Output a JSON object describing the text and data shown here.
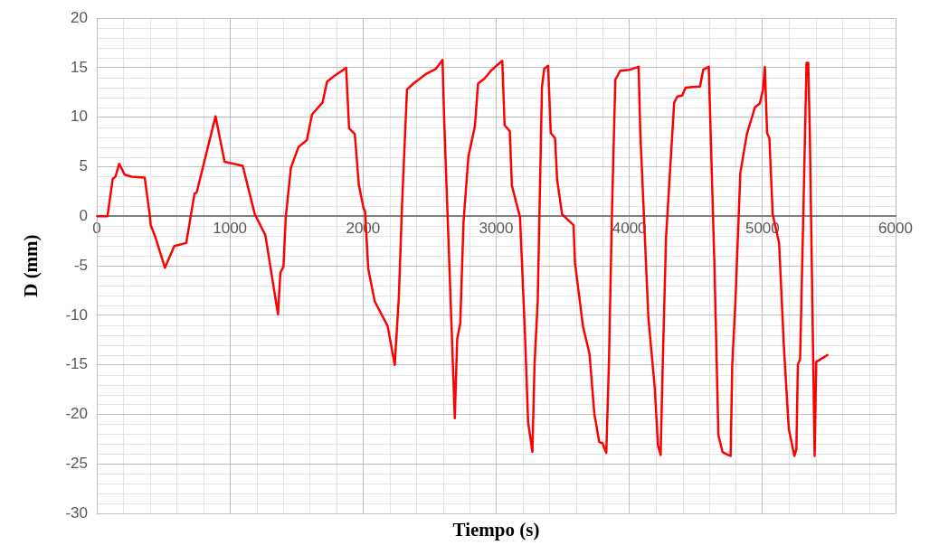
{
  "chart_data": {
    "type": "line",
    "xlabel": "Tiempo (s)",
    "ylabel": "D (mm)",
    "xlim": [
      0,
      6000
    ],
    "xticks": [
      0,
      1000,
      2000,
      3000,
      4000,
      5000,
      6000
    ],
    "ylim": [
      -30,
      20
    ],
    "yticks": [
      -30,
      -25,
      -20,
      -15,
      -10,
      -5,
      0,
      5,
      10,
      15,
      20
    ],
    "grid": true,
    "legend": false,
    "marker": "none",
    "line_style": "solid",
    "series": [
      {
        "color": "#ff0000",
        "x": [
          0,
          80,
          120,
          140,
          168,
          210,
          260,
          360,
          399,
          405,
          440,
          512,
          582,
          672,
          734,
          750,
          892,
          960,
          1096,
          1187,
          1266,
          1361,
          1379,
          1402,
          1420,
          1458,
          1515,
          1578,
          1617,
          1696,
          1730,
          1787,
          1873,
          1895,
          1938,
          1968,
          2002,
          2015,
          2039,
          2088,
          2185,
          2238,
          2269,
          2293,
          2330,
          2378,
          2476,
          2548,
          2597,
          2609,
          2658,
          2689,
          2707,
          2730,
          2755,
          2791,
          2840,
          2864,
          2912,
          2961,
          3010,
          3046,
          3063,
          3102,
          3118,
          3179,
          3216,
          3240,
          3272,
          3288,
          3312,
          3344,
          3361,
          3390,
          3410,
          3442,
          3458,
          3495,
          3581,
          3592,
          3652,
          3701,
          3737,
          3774,
          3798,
          3827,
          3847,
          3871,
          3895,
          3932,
          4004,
          4070,
          4082,
          4106,
          4143,
          4191,
          4215,
          4235,
          4252,
          4276,
          4337,
          4361,
          4397,
          4422,
          4531,
          4555,
          4597,
          4611,
          4640,
          4669,
          4700,
          4742,
          4761,
          4773,
          4797,
          4834,
          4883,
          4943,
          4980,
          5004,
          5018,
          5035,
          5052,
          5077,
          5125,
          5162,
          5198,
          5240,
          5255,
          5266,
          5283,
          5307,
          5331,
          5344,
          5356,
          5392,
          5404,
          5441,
          5489
        ],
        "values": [
          0,
          0,
          3.8,
          4.0,
          5.3,
          4.2,
          4.0,
          3.9,
          0,
          -0.9,
          -2.1,
          -5.2,
          -3.0,
          -2.7,
          2.3,
          2.4,
          10.1,
          5.5,
          5.1,
          0.2,
          -1.9,
          -9.9,
          -5.7,
          -5.1,
          0,
          4.9,
          7.0,
          7.7,
          10.3,
          11.5,
          13.6,
          14.2,
          15.0,
          8.9,
          8.3,
          3.2,
          0.9,
          0.5,
          -5.3,
          -8.6,
          -11.1,
          -15.0,
          -8.1,
          1.2,
          12.8,
          13.4,
          14.4,
          14.9,
          15.8,
          9.9,
          -8.6,
          -20.4,
          -12.4,
          -10.8,
          -0.5,
          6.0,
          9.1,
          13.4,
          13.9,
          14.7,
          15.3,
          15.7,
          9.2,
          8.6,
          3.1,
          -0.1,
          -11.8,
          -20.8,
          -23.8,
          -15.0,
          -8.6,
          13.1,
          14.9,
          15.2,
          8.4,
          7.9,
          3.7,
          0.2,
          -0.9,
          -4.7,
          -11.1,
          -13.9,
          -19.9,
          -22.8,
          -22.9,
          -23.9,
          -14.7,
          1.2,
          13.8,
          14.7,
          14.8,
          15.1,
          8.6,
          1.2,
          -10.2,
          -17.3,
          -23.1,
          -24.1,
          -14.4,
          -2.1,
          11.5,
          12.1,
          12.2,
          13.0,
          13.1,
          14.8,
          15.1,
          8.4,
          -5.3,
          -22.1,
          -23.8,
          -24.1,
          -24.2,
          -15.0,
          -8.6,
          4.4,
          8.3,
          11.0,
          11.4,
          12.8,
          15.1,
          8.4,
          7.9,
          0.2,
          -2.7,
          -13.4,
          -21.5,
          -24.2,
          -23.5,
          -15.0,
          -14.4,
          0.2,
          15.5,
          15.5,
          8.3,
          -24.2,
          -14.7,
          -14.4,
          -14.0
        ]
      }
    ]
  }
}
